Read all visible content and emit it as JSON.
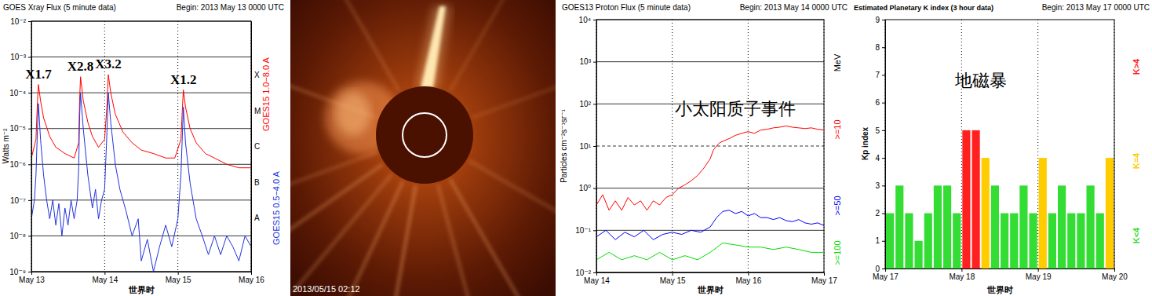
{
  "chart_data": [
    {
      "type": "line",
      "title": "GOES Xray Flux (5 minute data)",
      "subtitle": "Begin: 2013 May 13 0000 UTC",
      "x_label": "世界时",
      "y_label": "Watts m⁻²",
      "log": "y",
      "grid": true,
      "legend": "right",
      "xlim": [
        0,
        72
      ],
      "xticks": [
        {
          "value": 0,
          "label": "May 13"
        },
        {
          "value": 24,
          "label": "May 14"
        },
        {
          "value": 48,
          "label": "May 15"
        },
        {
          "value": 72,
          "label": "May 16"
        }
      ],
      "ylim": [
        1e-09,
        0.01
      ],
      "yticks": [
        {
          "value": 1e-09,
          "label": "10⁻⁹"
        },
        {
          "value": 1e-08,
          "label": "10⁻⁸"
        },
        {
          "value": 1e-07,
          "label": "10⁻⁷"
        },
        {
          "value": 1e-06,
          "label": "10⁻⁶"
        },
        {
          "value": 1e-05,
          "label": "10⁻⁵"
        },
        {
          "value": 0.0001,
          "label": "10⁻⁴"
        },
        {
          "value": 0.001,
          "label": "10⁻³"
        },
        {
          "value": 0.01,
          "label": "10⁻²"
        }
      ],
      "y2lim": [
        1e-09,
        0.01
      ],
      "y2ticks": [
        {
          "value": 3.16e-08,
          "label": "A"
        },
        {
          "value": 3.16e-07,
          "label": "B"
        },
        {
          "value": 3.16e-06,
          "label": "C"
        },
        {
          "value": 3.16e-05,
          "label": "M"
        },
        {
          "value": 0.000316,
          "label": "X"
        }
      ],
      "series": [
        {
          "name": "GOES15 1.0−8.0 A",
          "color": "#ff0000",
          "x": [
            0,
            1.5,
            2,
            2.3,
            3,
            4,
            6,
            8,
            11,
            14,
            15.5,
            15.8,
            16.1,
            17,
            18.5,
            20,
            22,
            24,
            24.8,
            25.2,
            26,
            27.5,
            30,
            33,
            36,
            40,
            44,
            47,
            49,
            49.5,
            49.8,
            50.5,
            52,
            54,
            57,
            60,
            64,
            68,
            72
          ],
          "values": [
            1.5e-06,
            5e-06,
            6e-05,
            0.00017,
            6e-05,
            2e-05,
            6e-06,
            3e-06,
            2e-06,
            1.5e-06,
            4e-06,
            6e-05,
            0.00028,
            6e-05,
            1.5e-05,
            6e-06,
            3e-06,
            5e-06,
            5e-05,
            0.00032,
            0.0001,
            2.5e-05,
            8e-06,
            4e-06,
            2.5e-06,
            2e-06,
            1.5e-06,
            1.5e-06,
            5e-06,
            4e-05,
            0.00012,
            4e-05,
            1e-05,
            4e-06,
            2e-06,
            1.5e-06,
            1e-06,
            8e-07,
            8e-07
          ]
        },
        {
          "name": "GOES15 0.5−4.0 A",
          "color": "#2233dd",
          "x": [
            0,
            1,
            1.5,
            2,
            2.3,
            3,
            4,
            5,
            6,
            7,
            8,
            9,
            10,
            11,
            12,
            13,
            14,
            15,
            15.5,
            15.8,
            16.1,
            17,
            18.5,
            20,
            21,
            22,
            23,
            24,
            24.8,
            25.2,
            26,
            27.5,
            29,
            31,
            33,
            35,
            36,
            38,
            40,
            42,
            44,
            46,
            48,
            49,
            49.5,
            49.8,
            50.5,
            52,
            54,
            56,
            58,
            60,
            62,
            64,
            66,
            68,
            70,
            72
          ],
          "values": [
            3e-08,
            1e-07,
            5e-07,
            1e-05,
            5e-05,
            5e-06,
            5e-07,
            1e-07,
            3e-08,
            1e-07,
            2e-08,
            8e-08,
            1e-08,
            6e-08,
            2e-08,
            1e-07,
            3e-08,
            1e-07,
            8e-07,
            2e-05,
            0.0001,
            1e-05,
            5e-07,
            6e-08,
            2e-07,
            3e-08,
            1e-07,
            2e-07,
            1e-05,
            0.0001,
            1.5e-05,
            1e-06,
            2e-07,
            5e-08,
            1e-08,
            3e-08,
            2e-09,
            8e-09,
            1e-09,
            5e-09,
            2e-08,
            5e-09,
            3e-08,
            5e-07,
            8e-06,
            4e-05,
            4e-06,
            3e-07,
            3e-08,
            1e-08,
            3e-09,
            1e-08,
            3e-09,
            1e-08,
            5e-09,
            2e-09,
            1e-08,
            5e-09
          ]
        }
      ],
      "annotations": [
        {
          "text": "X1.7",
          "x": 2.3,
          "y": 0.00017
        },
        {
          "text": "X2.8",
          "x": 16.1,
          "y": 0.00028
        },
        {
          "text": "X3.2",
          "x": 25.2,
          "y": 0.00032
        },
        {
          "text": "X1.2",
          "x": 49.8,
          "y": 0.00012
        }
      ]
    },
    {
      "type": "line",
      "title": "GOES13 Proton Flux (5 minute data)",
      "subtitle": "Begin: 2013 May 14 0000 UTC",
      "x_label": "世界时",
      "y_label": "Particles cm⁻²s⁻¹sr⁻¹",
      "y2_label": "MeV",
      "log": "y",
      "grid": true,
      "legend": "right",
      "xlim": [
        0,
        72
      ],
      "xticks": [
        {
          "value": 0,
          "label": "May 14"
        },
        {
          "value": 24,
          "label": "May 15"
        },
        {
          "value": 48,
          "label": "May 16"
        },
        {
          "value": 72,
          "label": "May 17"
        }
      ],
      "ylim": [
        0.01,
        10000
      ],
      "yticks": [
        {
          "value": 0.01,
          "label": "10⁻²"
        },
        {
          "value": 0.1,
          "label": "10⁻¹"
        },
        {
          "value": 1,
          "label": "10⁰"
        },
        {
          "value": 10,
          "label": "10¹"
        },
        {
          "value": 100,
          "label": "10²"
        },
        {
          "value": 1000,
          "label": "10³"
        },
        {
          "value": 10000,
          "label": "10⁴"
        }
      ],
      "threshold": {
        "value": 10,
        "line_style": "dashed"
      },
      "series": [
        {
          "name": ">=10",
          "color": "#ff0000",
          "x": [
            0,
            2,
            4,
            6,
            8,
            10,
            12,
            14,
            16,
            18,
            20,
            22,
            24,
            26,
            28,
            30,
            32,
            34,
            36,
            37,
            38,
            39,
            40,
            42,
            44,
            46,
            48,
            50,
            52,
            54,
            56,
            58,
            60,
            62,
            64,
            66,
            68,
            70,
            72
          ],
          "values": [
            0.4,
            0.7,
            0.3,
            0.5,
            0.3,
            0.6,
            0.4,
            0.5,
            0.3,
            0.5,
            0.4,
            0.6,
            0.7,
            1,
            1.2,
            1.5,
            2,
            3,
            5,
            8,
            10,
            12,
            13,
            15,
            18,
            20,
            22,
            20,
            24,
            25,
            27,
            28,
            30,
            28,
            27,
            26,
            27,
            25,
            24
          ]
        },
        {
          "name": ">=50",
          "color": "#0000ff",
          "x": [
            0,
            3,
            6,
            9,
            12,
            15,
            18,
            21,
            24,
            27,
            30,
            33,
            36,
            38,
            40,
            42,
            44,
            46,
            48,
            50,
            52,
            54,
            56,
            58,
            60,
            62,
            64,
            66,
            68,
            70,
            72
          ],
          "values": [
            0.07,
            0.1,
            0.06,
            0.09,
            0.07,
            0.1,
            0.06,
            0.08,
            0.09,
            0.08,
            0.1,
            0.09,
            0.12,
            0.2,
            0.28,
            0.3,
            0.25,
            0.28,
            0.22,
            0.25,
            0.2,
            0.2,
            0.18,
            0.2,
            0.17,
            0.16,
            0.18,
            0.15,
            0.14,
            0.15,
            0.13
          ]
        },
        {
          "name": ">=100",
          "color": "#00dd00",
          "x": [
            0,
            4,
            8,
            12,
            16,
            20,
            24,
            28,
            32,
            36,
            40,
            44,
            48,
            52,
            56,
            60,
            64,
            68,
            72
          ],
          "values": [
            0.02,
            0.03,
            0.02,
            0.025,
            0.02,
            0.03,
            0.02,
            0.025,
            0.02,
            0.03,
            0.05,
            0.045,
            0.04,
            0.04,
            0.035,
            0.04,
            0.035,
            0.03,
            0.03
          ]
        }
      ],
      "annotations": [
        {
          "text": "小太阳质子事件",
          "x": 44,
          "y": 80
        }
      ]
    },
    {
      "type": "bar",
      "title": "Estimated Planetary K index (3 hour data)",
      "subtitle": "Begin: 2013 May 17 0000 UTC",
      "x_label": "世界时",
      "y_label": "Kp index",
      "grid": "x",
      "legend": "right",
      "xlim": [
        0,
        72
      ],
      "xticks": [
        {
          "value": 0,
          "label": "May 17"
        },
        {
          "value": 24,
          "label": "May 18"
        },
        {
          "value": 48,
          "label": "May 19"
        },
        {
          "value": 72,
          "label": "May 20"
        }
      ],
      "ylim": [
        0,
        9
      ],
      "yticks": [
        0,
        1,
        2,
        3,
        4,
        5,
        6,
        7,
        8,
        9
      ],
      "x": [
        0,
        3,
        6,
        9,
        12,
        15,
        18,
        21,
        24,
        27,
        30,
        33,
        36,
        39,
        42,
        45,
        48,
        51,
        54,
        57,
        60,
        63,
        66,
        69
      ],
      "series": [
        {
          "name": "K<4",
          "color": "#33dd33",
          "values": [
            2,
            3,
            2,
            1,
            2,
            3,
            3,
            2,
            null,
            null,
            null,
            3,
            2,
            2,
            3,
            2,
            null,
            2,
            3,
            2,
            2,
            3,
            2,
            null
          ]
        },
        {
          "name": "K=4",
          "color": "#ffcc00",
          "values": [
            null,
            null,
            null,
            null,
            null,
            null,
            null,
            null,
            null,
            null,
            4,
            null,
            null,
            null,
            null,
            null,
            4,
            null,
            null,
            null,
            null,
            null,
            null,
            4
          ]
        },
        {
          "name": "K>4",
          "color": "#ff2020",
          "values": [
            null,
            null,
            null,
            null,
            null,
            null,
            null,
            null,
            5,
            5,
            null,
            null,
            null,
            null,
            null,
            null,
            null,
            null,
            null,
            null,
            null,
            null,
            null,
            null
          ]
        }
      ],
      "annotations": [
        {
          "text": "地磁暴",
          "x": 30,
          "y": 6.8
        }
      ]
    }
  ],
  "coronagraph": {
    "timestamp": "2013/05/15 02:12"
  }
}
